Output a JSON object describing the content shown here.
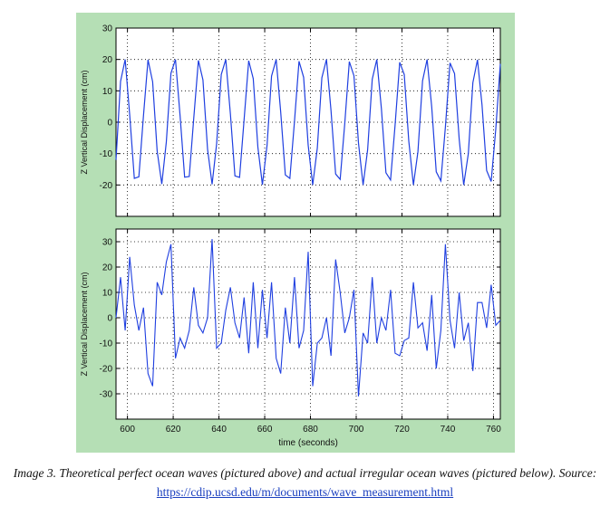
{
  "colors": {
    "background": "#b5dfb5",
    "line": "#1f3fe0",
    "axes_bg": "#ffffff",
    "grid": "#000000"
  },
  "caption": {
    "text": "Image 3. Theoretical perfect ocean waves (pictured above) and actual irregular ocean waves (pictured below). Source: ",
    "link": "https://cdip.ucsd.edu/m/documents/wave_measurement.html"
  },
  "chart_data": [
    {
      "type": "line",
      "ylabel": "Z Vertical Displacement (cm)",
      "xlim": [
        595,
        763
      ],
      "ylim": [
        -30,
        30
      ],
      "yticks": [
        -20,
        -10,
        0,
        10,
        20,
        30
      ],
      "yticklabels": [
        "-20",
        "-10",
        "0",
        "10",
        "20",
        "30"
      ],
      "xticks": [
        600,
        620,
        640,
        660,
        680,
        700,
        720,
        740,
        760
      ],
      "show_xticklabels": false,
      "grid": true,
      "series": [
        {
          "x": [
            595.0,
            597.0,
            599.0,
            601.0,
            603.0,
            605.0,
            607.0,
            609.0,
            611.0,
            613.0,
            615.0,
            617.0,
            619.0,
            621.0,
            623.0,
            625.0,
            627.0,
            629.0,
            631.0,
            633.0,
            635.0,
            637.0,
            639.0,
            641.0,
            643.0,
            645.0,
            647.0,
            649.0,
            651.0,
            653.0,
            655.0,
            657.0,
            659.0,
            661.0,
            663.0,
            665.0,
            667.0,
            669.0,
            671.0,
            673.0,
            675.0,
            677.0,
            679.0,
            681.0,
            683.0,
            685.0,
            687.0,
            689.0,
            691.0,
            693.0,
            695.0,
            697.0,
            699.0,
            701.0,
            703.0,
            705.0,
            707.0,
            709.0,
            711.0,
            713.0,
            715.0,
            717.0,
            719.0,
            721.0,
            723.0,
            725.0,
            727.0,
            729.0,
            731.0,
            733.0,
            735.0,
            737.0,
            739.0,
            741.0,
            743.0,
            745.0,
            747.0,
            749.0,
            751.0,
            753.0,
            755.0,
            757.0,
            759.0,
            761.0,
            763.0
          ],
          "y": [
            -12.0,
            13.0,
            20.0,
            2.3,
            -17.9,
            -17.4,
            2.1,
            19.9,
            12.9,
            -9.2,
            -19.7,
            -6.3,
            15.6,
            20.0,
            2.0,
            -17.5,
            -17.3,
            1.4,
            19.7,
            13.5,
            -8.6,
            -19.8,
            -6.9,
            15.2,
            20.0,
            2.6,
            -17.1,
            -17.6,
            0.8,
            19.6,
            13.9,
            -7.9,
            -19.9,
            -7.5,
            14.7,
            20.0,
            3.2,
            -16.8,
            -17.9,
            0.3,
            19.4,
            14.3,
            -7.3,
            -20.0,
            -8.2,
            14.2,
            20.0,
            3.7,
            -16.5,
            -18.2,
            -0.3,
            19.3,
            14.8,
            -6.6,
            -20.0,
            -8.8,
            13.7,
            20.0,
            4.3,
            -16.1,
            -18.4,
            -0.9,
            19.1,
            15.2,
            -6.0,
            -20.0,
            -9.4,
            13.2,
            20.0,
            4.9,
            -15.8,
            -18.7,
            -1.5,
            18.9,
            15.5,
            -5.3,
            -20.0,
            -10.0,
            12.6,
            19.9,
            5.5,
            -15.4,
            -18.9,
            -2.1,
            18.6
          ]
        }
      ]
    },
    {
      "type": "line",
      "xlabel": "time (seconds)",
      "ylabel": "Z Vertical Displacement (cm)",
      "xlim": [
        595,
        763
      ],
      "ylim": [
        -40,
        35
      ],
      "yticks": [
        -30,
        -20,
        -10,
        0,
        10,
        20,
        30
      ],
      "yticklabels": [
        "-30",
        "-20",
        "-10",
        "0",
        "10",
        "20",
        "30"
      ],
      "xticks": [
        600,
        620,
        640,
        660,
        680,
        700,
        720,
        740,
        760
      ],
      "xticklabels": [
        "600",
        "620",
        "640",
        "660",
        "680",
        "700",
        "720",
        "740",
        "760"
      ],
      "grid": true,
      "series": [
        {
          "x": [
            595,
            597,
            599,
            601,
            603,
            605,
            607,
            609,
            611,
            613,
            615,
            617,
            619,
            621,
            623,
            625,
            627,
            629,
            631,
            633,
            635,
            637,
            639,
            641,
            643,
            645,
            647,
            649,
            651,
            653,
            655,
            657,
            659,
            661,
            663,
            665,
            667,
            669,
            671,
            673,
            675,
            677,
            679,
            681,
            683,
            685,
            687,
            689,
            691,
            693,
            695,
            697,
            699,
            701,
            703,
            705,
            707,
            709,
            711,
            713,
            715,
            717,
            719,
            721,
            723,
            725,
            727,
            729,
            731,
            733,
            735,
            737,
            739,
            741,
            743,
            745,
            747,
            749,
            751,
            753,
            755,
            757,
            759,
            761,
            763
          ],
          "y": [
            0,
            16,
            -5,
            24,
            5,
            -5,
            4,
            -22,
            -27,
            14,
            9,
            22,
            29,
            -16,
            -8,
            -12,
            -5,
            12,
            -3,
            -6,
            0,
            31,
            -12,
            -10,
            3,
            12,
            -2,
            -8,
            8,
            -14,
            14,
            -12,
            11,
            -8,
            14,
            -16,
            -22,
            4,
            -10,
            16,
            -12,
            -5,
            26,
            -27,
            -10,
            -8,
            0,
            -15,
            23,
            10,
            -6,
            0,
            11,
            -31,
            -6,
            -10,
            16,
            -10,
            0,
            -5,
            11,
            -14,
            -15,
            -9,
            -8,
            14,
            -4,
            -2,
            -13,
            9,
            -20,
            -5,
            29,
            -1,
            -12,
            10,
            -9,
            -2,
            -21,
            6,
            6,
            -4,
            13,
            -3,
            -1
          ]
        }
      ]
    }
  ]
}
